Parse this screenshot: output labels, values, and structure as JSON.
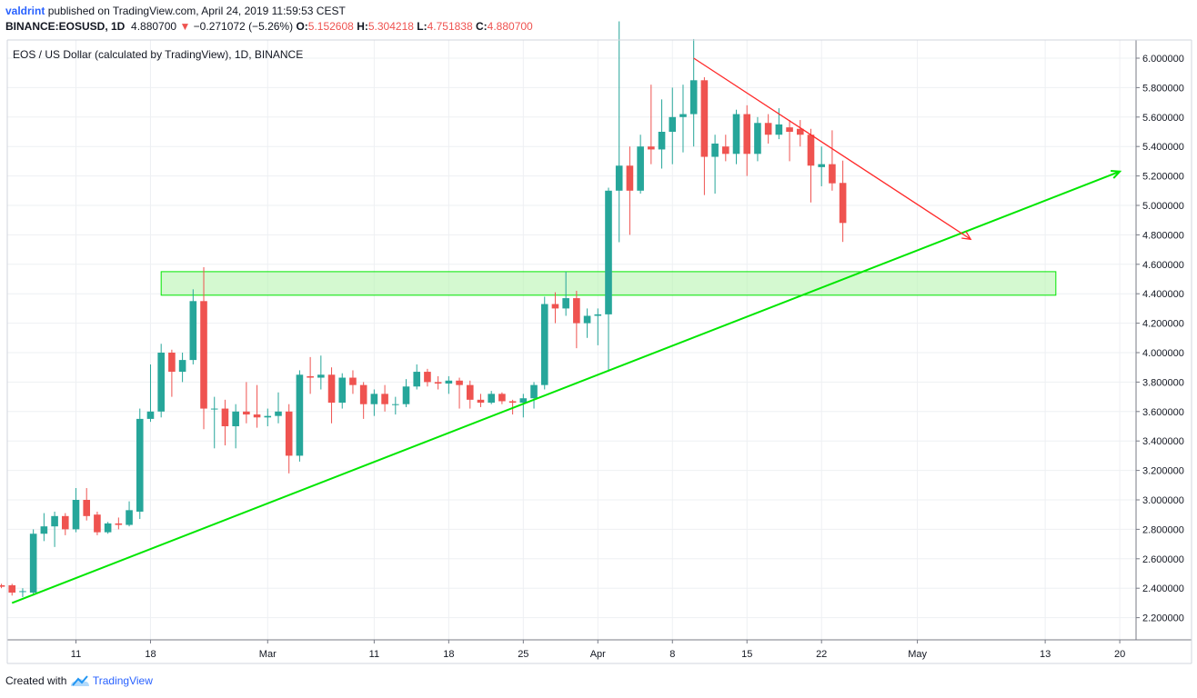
{
  "header": {
    "author": "valdrint",
    "published": "published on TradingView.com, April 24, 2019 11:59:53 CEST",
    "symbol": "BINANCE:EOSUSD, 1D",
    "last": "4.880700",
    "change_arrow": "▼",
    "change": "−0.271072 (−5.26%)",
    "o_label": "O:",
    "o": "5.152608",
    "h_label": "H:",
    "h": "5.304218",
    "l_label": "L:",
    "l": "4.751838",
    "c_label": "C:",
    "c": "4.880700"
  },
  "footer": {
    "created": "Created with",
    "brand": "TradingView",
    "logo_icon": "tradingview-cloud-icon"
  },
  "chart_data": {
    "type": "candlestick",
    "title": "EOS / US Dollar (calculated by TradingView), 1D, BINANCE",
    "up_color": "#26a69a",
    "down_color": "#ef5350",
    "support_line_color": "#00e600",
    "resistance_line_color": "#ff2a2a",
    "zone_color": "#b8f5b0",
    "y_ticks": [
      "2.200000",
      "2.400000",
      "2.600000",
      "2.800000",
      "3.000000",
      "3.200000",
      "3.400000",
      "3.600000",
      "3.800000",
      "4.000000",
      "4.200000",
      "4.400000",
      "4.600000",
      "4.800000",
      "5.000000",
      "5.200000",
      "5.400000",
      "5.600000",
      "5.800000",
      "6.000000"
    ],
    "x_ticks": [
      {
        "label": "11",
        "date": "2019-02-11"
      },
      {
        "label": "18",
        "date": "2019-02-18"
      },
      {
        "label": "Mar",
        "date": "2019-03-01"
      },
      {
        "label": "11",
        "date": "2019-03-11"
      },
      {
        "label": "18",
        "date": "2019-03-18"
      },
      {
        "label": "25",
        "date": "2019-03-25"
      },
      {
        "label": "Apr",
        "date": "2019-04-01"
      },
      {
        "label": "8",
        "date": "2019-04-08"
      },
      {
        "label": "15",
        "date": "2019-04-15"
      },
      {
        "label": "22",
        "date": "2019-04-22"
      },
      {
        "label": "May",
        "date": "2019-05-01"
      },
      {
        "label": "13",
        "date": "2019-05-13"
      },
      {
        "label": "20",
        "date": "2019-05-20"
      }
    ],
    "candles": [
      {
        "date": "2019-02-04",
        "o": 2.42,
        "h": 2.43,
        "l": 2.4,
        "c": 2.41
      },
      {
        "date": "2019-02-05",
        "o": 2.42,
        "h": 2.43,
        "l": 2.35,
        "c": 2.37
      },
      {
        "date": "2019-02-06",
        "o": 2.38,
        "h": 2.4,
        "l": 2.34,
        "c": 2.38
      },
      {
        "date": "2019-02-07",
        "o": 2.37,
        "h": 2.8,
        "l": 2.35,
        "c": 2.77
      },
      {
        "date": "2019-02-08",
        "o": 2.77,
        "h": 2.91,
        "l": 2.72,
        "c": 2.82
      },
      {
        "date": "2019-02-09",
        "o": 2.82,
        "h": 2.92,
        "l": 2.68,
        "c": 2.89
      },
      {
        "date": "2019-02-10",
        "o": 2.89,
        "h": 2.91,
        "l": 2.76,
        "c": 2.8
      },
      {
        "date": "2019-02-11",
        "o": 2.8,
        "h": 3.08,
        "l": 2.78,
        "c": 3.0
      },
      {
        "date": "2019-02-12",
        "o": 3.0,
        "h": 3.08,
        "l": 2.86,
        "c": 2.89
      },
      {
        "date": "2019-02-13",
        "o": 2.9,
        "h": 2.92,
        "l": 2.76,
        "c": 2.78
      },
      {
        "date": "2019-02-14",
        "o": 2.78,
        "h": 2.85,
        "l": 2.77,
        "c": 2.84
      },
      {
        "date": "2019-02-15",
        "o": 2.84,
        "h": 2.88,
        "l": 2.8,
        "c": 2.83
      },
      {
        "date": "2019-02-16",
        "o": 2.83,
        "h": 2.99,
        "l": 2.82,
        "c": 2.93
      },
      {
        "date": "2019-02-17",
        "o": 2.92,
        "h": 3.62,
        "l": 2.87,
        "c": 3.55
      },
      {
        "date": "2019-02-18",
        "o": 3.55,
        "h": 3.92,
        "l": 3.53,
        "c": 3.6
      },
      {
        "date": "2019-02-19",
        "o": 3.6,
        "h": 4.06,
        "l": 3.56,
        "c": 4.0
      },
      {
        "date": "2019-02-20",
        "o": 4.0,
        "h": 4.02,
        "l": 3.7,
        "c": 3.87
      },
      {
        "date": "2019-02-21",
        "o": 3.87,
        "h": 4.0,
        "l": 3.8,
        "c": 3.95
      },
      {
        "date": "2019-02-22",
        "o": 3.95,
        "h": 4.43,
        "l": 3.92,
        "c": 4.35
      },
      {
        "date": "2019-02-23",
        "o": 4.35,
        "h": 4.58,
        "l": 3.48,
        "c": 3.62
      },
      {
        "date": "2019-02-24",
        "o": 3.62,
        "h": 3.7,
        "l": 3.35,
        "c": 3.62
      },
      {
        "date": "2019-02-25",
        "o": 3.62,
        "h": 3.68,
        "l": 3.37,
        "c": 3.5
      },
      {
        "date": "2019-02-26",
        "o": 3.5,
        "h": 3.65,
        "l": 3.35,
        "c": 3.6
      },
      {
        "date": "2019-02-27",
        "o": 3.6,
        "h": 3.8,
        "l": 3.52,
        "c": 3.58
      },
      {
        "date": "2019-02-28",
        "o": 3.58,
        "h": 3.78,
        "l": 3.49,
        "c": 3.56
      },
      {
        "date": "2019-03-01",
        "o": 3.56,
        "h": 3.62,
        "l": 3.5,
        "c": 3.57
      },
      {
        "date": "2019-03-02",
        "o": 3.57,
        "h": 3.73,
        "l": 3.52,
        "c": 3.6
      },
      {
        "date": "2019-03-03",
        "o": 3.6,
        "h": 3.65,
        "l": 3.18,
        "c": 3.3
      },
      {
        "date": "2019-03-04",
        "o": 3.3,
        "h": 3.88,
        "l": 3.26,
        "c": 3.85
      },
      {
        "date": "2019-03-05",
        "o": 3.84,
        "h": 3.97,
        "l": 3.72,
        "c": 3.83
      },
      {
        "date": "2019-03-06",
        "o": 3.83,
        "h": 3.98,
        "l": 3.75,
        "c": 3.85
      },
      {
        "date": "2019-03-07",
        "o": 3.85,
        "h": 3.9,
        "l": 3.52,
        "c": 3.66
      },
      {
        "date": "2019-03-08",
        "o": 3.66,
        "h": 3.86,
        "l": 3.62,
        "c": 3.83
      },
      {
        "date": "2019-03-09",
        "o": 3.83,
        "h": 3.88,
        "l": 3.72,
        "c": 3.78
      },
      {
        "date": "2019-03-10",
        "o": 3.78,
        "h": 3.8,
        "l": 3.55,
        "c": 3.65
      },
      {
        "date": "2019-03-11",
        "o": 3.65,
        "h": 3.75,
        "l": 3.57,
        "c": 3.72
      },
      {
        "date": "2019-03-12",
        "o": 3.72,
        "h": 3.78,
        "l": 3.6,
        "c": 3.65
      },
      {
        "date": "2019-03-13",
        "o": 3.65,
        "h": 3.7,
        "l": 3.58,
        "c": 3.65
      },
      {
        "date": "2019-03-14",
        "o": 3.65,
        "h": 3.82,
        "l": 3.63,
        "c": 3.77
      },
      {
        "date": "2019-03-15",
        "o": 3.77,
        "h": 3.92,
        "l": 3.75,
        "c": 3.87
      },
      {
        "date": "2019-03-16",
        "o": 3.87,
        "h": 3.89,
        "l": 3.77,
        "c": 3.8
      },
      {
        "date": "2019-03-17",
        "o": 3.8,
        "h": 3.84,
        "l": 3.75,
        "c": 3.79
      },
      {
        "date": "2019-03-18",
        "o": 3.79,
        "h": 3.84,
        "l": 3.72,
        "c": 3.81
      },
      {
        "date": "2019-03-19",
        "o": 3.81,
        "h": 3.83,
        "l": 3.62,
        "c": 3.78
      },
      {
        "date": "2019-03-20",
        "o": 3.78,
        "h": 3.81,
        "l": 3.62,
        "c": 3.68
      },
      {
        "date": "2019-03-21",
        "o": 3.68,
        "h": 3.72,
        "l": 3.63,
        "c": 3.66
      },
      {
        "date": "2019-03-22",
        "o": 3.66,
        "h": 3.74,
        "l": 3.65,
        "c": 3.72
      },
      {
        "date": "2019-03-23",
        "o": 3.72,
        "h": 3.73,
        "l": 3.65,
        "c": 3.67
      },
      {
        "date": "2019-03-24",
        "o": 3.67,
        "h": 3.68,
        "l": 3.58,
        "c": 3.66
      },
      {
        "date": "2019-03-25",
        "o": 3.66,
        "h": 3.72,
        "l": 3.56,
        "c": 3.69
      },
      {
        "date": "2019-03-26",
        "o": 3.69,
        "h": 3.8,
        "l": 3.62,
        "c": 3.78
      },
      {
        "date": "2019-03-27",
        "o": 3.78,
        "h": 4.38,
        "l": 3.75,
        "c": 4.33
      },
      {
        "date": "2019-03-28",
        "o": 4.33,
        "h": 4.41,
        "l": 4.2,
        "c": 4.3
      },
      {
        "date": "2019-03-29",
        "o": 4.3,
        "h": 4.55,
        "l": 4.25,
        "c": 4.37
      },
      {
        "date": "2019-03-30",
        "o": 4.37,
        "h": 4.42,
        "l": 4.03,
        "c": 4.2
      },
      {
        "date": "2019-03-31",
        "o": 4.2,
        "h": 4.3,
        "l": 4.1,
        "c": 4.25
      },
      {
        "date": "2019-04-01",
        "o": 4.25,
        "h": 4.3,
        "l": 4.05,
        "c": 4.26
      },
      {
        "date": "2019-04-02",
        "o": 4.26,
        "h": 5.12,
        "l": 3.87,
        "c": 5.1
      },
      {
        "date": "2019-04-03",
        "o": 5.1,
        "h": 6.25,
        "l": 4.75,
        "c": 5.27
      },
      {
        "date": "2019-04-04",
        "o": 5.27,
        "h": 5.4,
        "l": 4.8,
        "c": 5.1
      },
      {
        "date": "2019-04-05",
        "o": 5.1,
        "h": 5.48,
        "l": 5.08,
        "c": 5.4
      },
      {
        "date": "2019-04-06",
        "o": 5.4,
        "h": 5.82,
        "l": 5.28,
        "c": 5.38
      },
      {
        "date": "2019-04-07",
        "o": 5.38,
        "h": 5.72,
        "l": 5.25,
        "c": 5.5
      },
      {
        "date": "2019-04-08",
        "o": 5.5,
        "h": 5.8,
        "l": 5.28,
        "c": 5.6
      },
      {
        "date": "2019-04-09",
        "o": 5.6,
        "h": 5.82,
        "l": 5.36,
        "c": 5.62
      },
      {
        "date": "2019-04-10",
        "o": 5.62,
        "h": 6.13,
        "l": 5.4,
        "c": 5.85
      },
      {
        "date": "2019-04-11",
        "o": 5.85,
        "h": 5.87,
        "l": 5.07,
        "c": 5.33
      },
      {
        "date": "2019-04-12",
        "o": 5.33,
        "h": 5.48,
        "l": 5.08,
        "c": 5.42
      },
      {
        "date": "2019-04-13",
        "o": 5.4,
        "h": 5.48,
        "l": 5.3,
        "c": 5.35
      },
      {
        "date": "2019-04-14",
        "o": 5.35,
        "h": 5.65,
        "l": 5.28,
        "c": 5.62
      },
      {
        "date": "2019-04-15",
        "o": 5.62,
        "h": 5.68,
        "l": 5.2,
        "c": 5.35
      },
      {
        "date": "2019-04-16",
        "o": 5.35,
        "h": 5.6,
        "l": 5.3,
        "c": 5.56
      },
      {
        "date": "2019-04-17",
        "o": 5.56,
        "h": 5.62,
        "l": 5.42,
        "c": 5.48
      },
      {
        "date": "2019-04-18",
        "o": 5.48,
        "h": 5.66,
        "l": 5.45,
        "c": 5.55
      },
      {
        "date": "2019-04-19",
        "o": 5.53,
        "h": 5.58,
        "l": 5.3,
        "c": 5.5
      },
      {
        "date": "2019-04-20",
        "o": 5.52,
        "h": 5.58,
        "l": 5.4,
        "c": 5.48
      },
      {
        "date": "2019-04-21",
        "o": 5.48,
        "h": 5.52,
        "l": 5.02,
        "c": 5.27
      },
      {
        "date": "2019-04-22",
        "o": 5.26,
        "h": 5.4,
        "l": 5.13,
        "c": 5.28
      },
      {
        "date": "2019-04-23",
        "o": 5.28,
        "h": 5.51,
        "l": 5.1,
        "c": 5.15
      },
      {
        "date": "2019-04-24",
        "o": 5.152608,
        "h": 5.304218,
        "l": 4.751838,
        "c": 4.8807
      }
    ],
    "zone": {
      "from_date": "2019-02-19",
      "to_date": "2019-05-14",
      "low": 4.39,
      "high": 4.55
    },
    "support_line": {
      "from": {
        "date": "2019-02-05",
        "price": 2.3
      },
      "to": {
        "date": "2019-05-20",
        "price": 5.23
      }
    },
    "resistance_line": {
      "from": {
        "date": "2019-04-10",
        "price": 6.0
      },
      "to": {
        "date": "2019-05-06",
        "price": 4.77
      }
    },
    "y_min_visible": 2.05,
    "y_max_visible": 6.18
  }
}
